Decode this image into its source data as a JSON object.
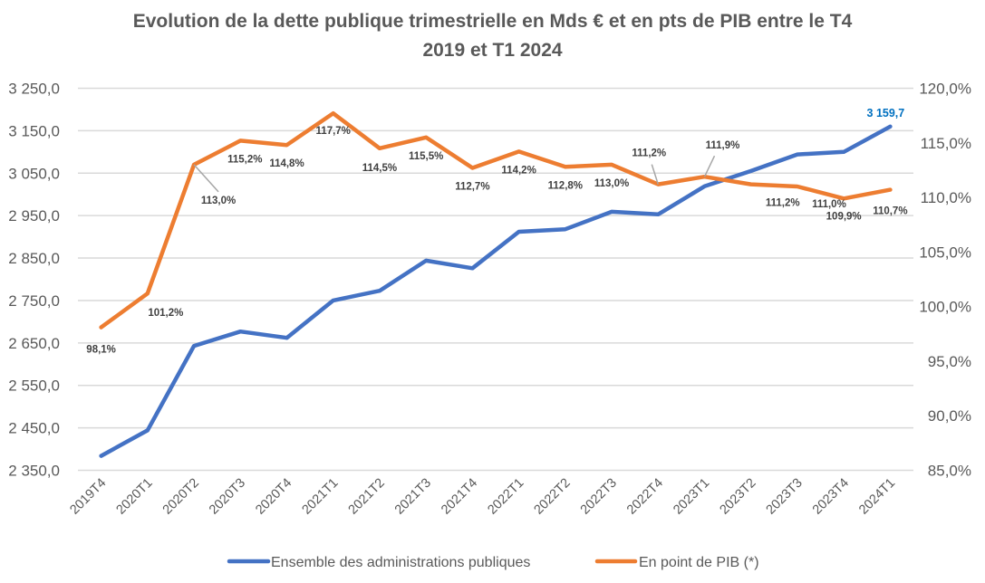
{
  "chart_data": {
    "type": "line",
    "title_lines": [
      "Evolution de la dette publique trimestrielle en Mds € et en pts de PIB entre le T4",
      "2019 et T1 2024"
    ],
    "categories": [
      "2019T4",
      "2020T1",
      "2020T2",
      "2020T3",
      "2020T4",
      "2021T1",
      "2021T2",
      "2021T3",
      "2021T4",
      "2022T1",
      "2022T2",
      "2022T3",
      "2022T4",
      "2023T1",
      "2023T2",
      "2023T3",
      "2023T4",
      "2024T1"
    ],
    "y_left": {
      "range": [
        2350,
        3250
      ],
      "ticks": [
        2350,
        2450,
        2550,
        2650,
        2750,
        2850,
        2950,
        3050,
        3150,
        3250
      ],
      "tick_labels": [
        "2 350,0",
        "2 450,0",
        "2 550,0",
        "2 650,0",
        "2 750,0",
        "2 850,0",
        "2 950,0",
        "3 050,0",
        "3 150,0",
        "3 250,0"
      ]
    },
    "y_right": {
      "range": [
        85,
        120
      ],
      "ticks": [
        85,
        90,
        95,
        100,
        105,
        110,
        115,
        120
      ],
      "tick_labels": [
        "85,0%",
        "90,0%",
        "95,0%",
        "100,0%",
        "105,0%",
        "110,0%",
        "115,0%",
        "120,0%"
      ]
    },
    "grid": true,
    "legend_position": "bottom",
    "series": [
      {
        "name": "Ensemble des administrations publiques",
        "axis": "left",
        "color": "#4472c4",
        "values": [
          2384,
          2444,
          2643,
          2677,
          2662,
          2750,
          2773,
          2844,
          2826,
          2912,
          2918,
          2959,
          2953,
          3019,
          3055,
          3094,
          3100,
          3159.7
        ],
        "data_labels": {
          "17": "3 159,7"
        }
      },
      {
        "name": "En point de PIB (*)",
        "axis": "right",
        "color": "#ed7d31",
        "values": [
          98.1,
          101.2,
          113.0,
          115.2,
          114.8,
          117.7,
          114.5,
          115.5,
          112.7,
          114.2,
          112.8,
          113.0,
          111.2,
          111.9,
          111.2,
          111.0,
          109.9,
          110.7
        ],
        "data_labels": [
          "98,1%",
          "101,2%",
          "113,0%",
          "115,2%",
          "114,8%",
          "117,7%",
          "114,5%",
          "115,5%",
          "112,7%",
          "114,2%",
          "112,8%",
          "113,0%",
          "111,2%",
          "111,9%",
          "111,2%",
          "111,0%",
          "109,9%",
          "110,7%"
        ]
      }
    ]
  }
}
